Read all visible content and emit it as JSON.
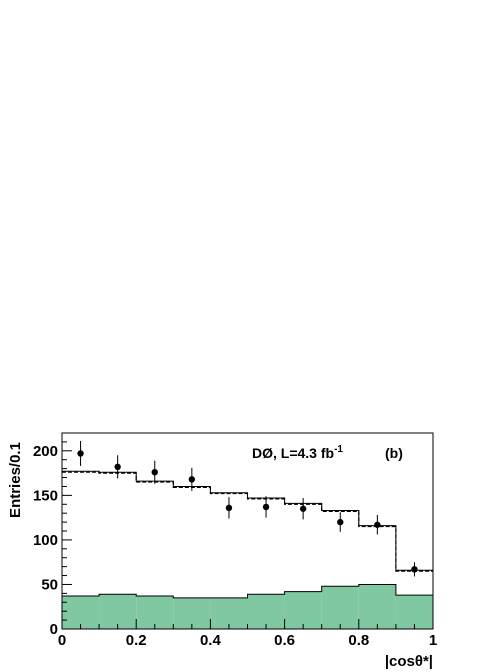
{
  "chart_data": {
    "type": "histogram",
    "xlabel": "|cosθ*|",
    "ylabel": "Entries/0.1",
    "xlim": [
      0,
      1
    ],
    "ylim": [
      0,
      220
    ],
    "x_ticks": [
      "0",
      "0.2",
      "0.4",
      "0.6",
      "0.8",
      "1"
    ],
    "y_ticks": [
      "0",
      "50",
      "100",
      "150",
      "200"
    ],
    "bin_edges": [
      0,
      0.1,
      0.2,
      0.3,
      0.4,
      0.5,
      0.6,
      0.7,
      0.8,
      0.9,
      1.0
    ],
    "series": [
      {
        "kind": "points_with_errors",
        "x": [
          0.05,
          0.15,
          0.25,
          0.35,
          0.45,
          0.55,
          0.65,
          0.75,
          0.85,
          0.95
        ],
        "values": [
          197,
          182,
          176,
          168,
          136,
          137,
          135,
          120,
          117,
          67
        ],
        "errors": [
          14,
          13,
          13,
          13,
          12,
          12,
          12,
          11,
          11,
          8
        ]
      },
      {
        "kind": "step_solid",
        "values": [
          177,
          176,
          166,
          160,
          153,
          147,
          141,
          133,
          116,
          66
        ]
      },
      {
        "kind": "step_dashed",
        "values": [
          176,
          175,
          165,
          159,
          152,
          146,
          140,
          132,
          115,
          65
        ]
      },
      {
        "kind": "filled_histogram",
        "color": "#7fc8a2",
        "values": [
          37,
          39,
          37,
          35,
          35,
          39,
          42,
          48,
          50,
          38
        ]
      }
    ],
    "annotations": {
      "experiment": "DØ, L=4.3 fb",
      "superscript": "-1",
      "panel": "(b)"
    }
  }
}
